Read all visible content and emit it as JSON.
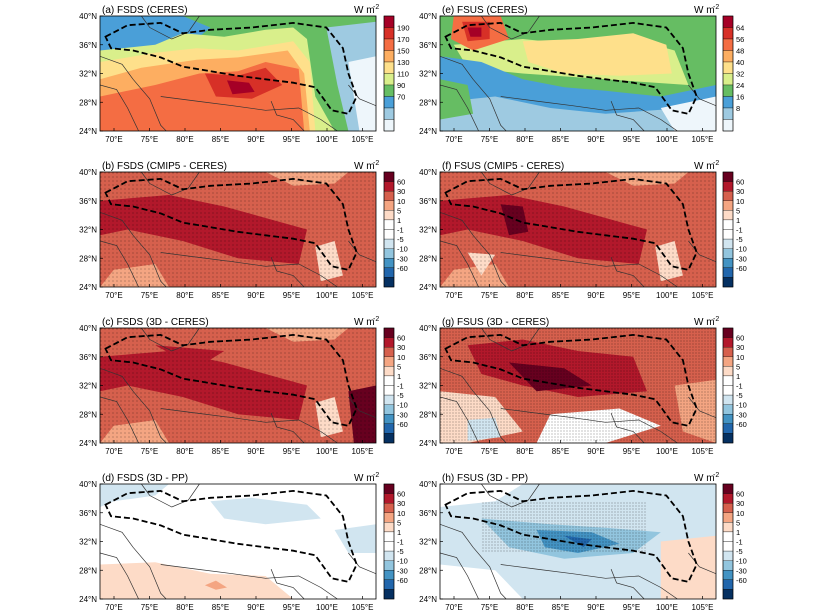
{
  "figure": {
    "units": "W m",
    "units_exp": "-2",
    "lat_ticks": [
      "40°N",
      "36°N",
      "32°N",
      "28°N",
      "24°N"
    ],
    "lon_ticks": [
      "70°E",
      "75°E",
      "80°E",
      "85°E",
      "90°E",
      "95°E",
      "100°E",
      "105°E"
    ],
    "panels": [
      {
        "id": "a",
        "title": "(a) FSDS (CERES)",
        "kind": "fsds_abs",
        "colorbar": "fsds"
      },
      {
        "id": "e",
        "title": "(e) FSUS (CERES)",
        "kind": "fsus_abs",
        "colorbar": "fsus"
      },
      {
        "id": "b",
        "title": "(b) FSDS (CMIP5 - CERES)",
        "kind": "diff_bigpos",
        "colorbar": "diff"
      },
      {
        "id": "f",
        "title": "(f) FSUS (CMIP5 - CERES)",
        "kind": "diff_bigpos2",
        "colorbar": "diff"
      },
      {
        "id": "c",
        "title": "(c) FSDS (3D - CERES)",
        "kind": "diff_bigpos3",
        "colorbar": "diff"
      },
      {
        "id": "g",
        "title": "(g) FSUS (3D - CERES)",
        "kind": "diff_mixed",
        "colorbar": "diff"
      },
      {
        "id": "d",
        "title": "(d) FSDS (3D - PP)",
        "kind": "diff_small",
        "colorbar": "diff"
      },
      {
        "id": "h",
        "title": "(h) FSUS (3D - PP)",
        "kind": "diff_neg",
        "colorbar": "diff"
      }
    ],
    "colorbars": {
      "fsds": {
        "labels": [
          "190",
          "170",
          "150",
          "130",
          "110",
          "90",
          "70"
        ],
        "colors": [
          "#a50026",
          "#d73027",
          "#f46d43",
          "#fdae61",
          "#fee08b",
          "#d9ef8b",
          "#66bd63",
          "#4a9fd8",
          "#9ecae1",
          "#eef6fb"
        ]
      },
      "fsus": {
        "labels": [
          "64",
          "56",
          "48",
          "40",
          "32",
          "24",
          "16",
          "8"
        ],
        "colors": [
          "#a50026",
          "#d73027",
          "#f46d43",
          "#fdae61",
          "#fee08b",
          "#d9ef8b",
          "#66bd63",
          "#4a9fd8",
          "#9ecae1",
          "#eef6fb"
        ]
      },
      "diff": {
        "labels": [
          "60",
          "30",
          "10",
          "5",
          "1",
          "-1",
          "-5",
          "-10",
          "-30",
          "-60"
        ],
        "colors": [
          "#67001f",
          "#b2182b",
          "#d6604d",
          "#f4a582",
          "#fddbc7",
          "#ffffff",
          "#ffffff",
          "#d1e5f0",
          "#92c5de",
          "#4393c3",
          "#2166ac",
          "#053061"
        ]
      }
    }
  }
}
